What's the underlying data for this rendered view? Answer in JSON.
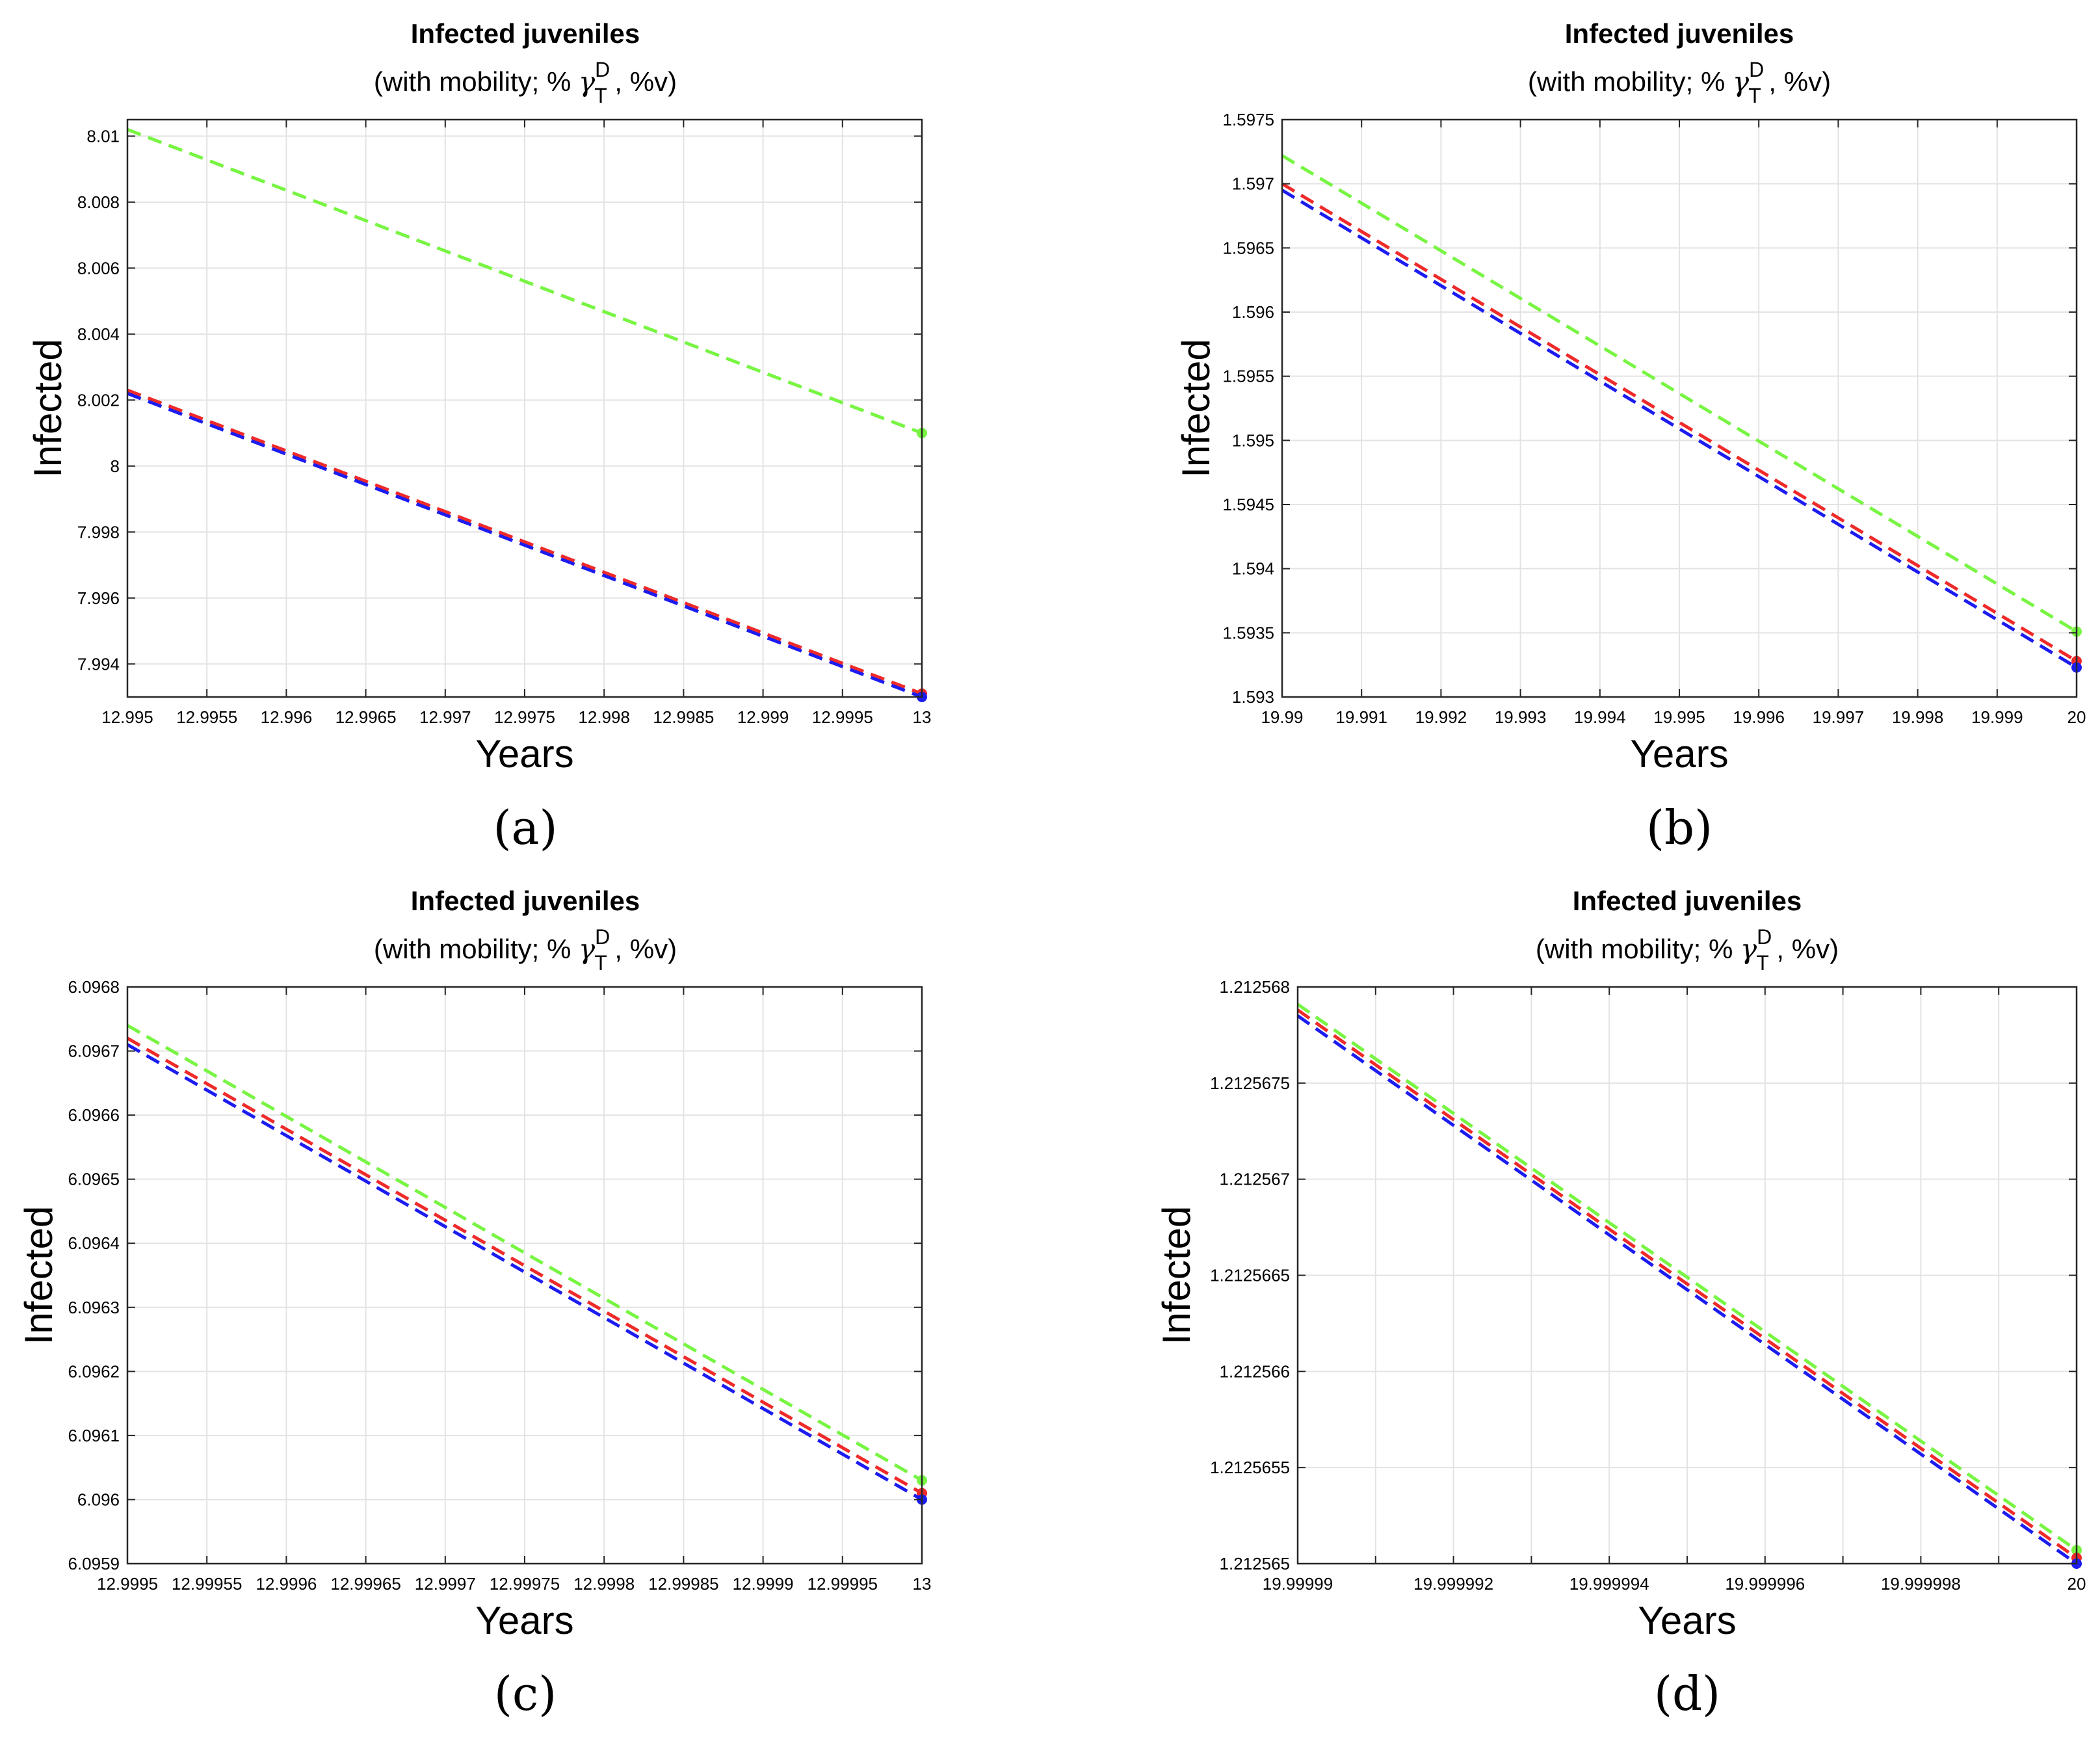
{
  "colors": {
    "green": "#77f542",
    "red": "#ef2a2a",
    "blue": "#1c1cf0",
    "grid": "#e3e3e3",
    "axis": "#262626",
    "text": "#000000"
  },
  "chart_data": [
    {
      "id": "a",
      "type": "line",
      "panel_label": "(a)",
      "title": "Infected juveniles",
      "subtitle_prefix": "(with mobility; % ",
      "subtitle_gamma": "γ",
      "subtitle_sup": "D",
      "subtitle_sub": "T",
      "subtitle_suffix": " , %v)",
      "xlabel": "Years",
      "ylabel": "Infected",
      "xlim": [
        12.995,
        13
      ],
      "ylim": [
        7.993,
        8.0105
      ],
      "xticks": [
        12.995,
        12.9955,
        12.996,
        12.9965,
        12.997,
        12.9975,
        12.998,
        12.9985,
        12.999,
        12.9995,
        13
      ],
      "xtick_labels": [
        "12.995",
        "12.9955",
        "12.996",
        "12.9965",
        "12.997",
        "12.9975",
        "12.998",
        "12.9985",
        "12.999",
        "12.9995",
        "13"
      ],
      "yticks": [
        7.994,
        7.996,
        7.998,
        8,
        8.002,
        8.004,
        8.006,
        8.008,
        8.01
      ],
      "ytick_labels": [
        "7.994",
        "7.996",
        "7.998",
        "8",
        "8.002",
        "8.004",
        "8.006",
        "8.008",
        "8.01"
      ],
      "grid": true,
      "series": [
        {
          "name": "green",
          "color": "green",
          "x": [
            12.995,
            13
          ],
          "y": [
            8.0102,
            8.001
          ]
        },
        {
          "name": "red",
          "color": "red",
          "x": [
            12.995,
            13
          ],
          "y": [
            8.0023,
            7.9931
          ]
        },
        {
          "name": "blue",
          "color": "blue",
          "x": [
            12.995,
            13
          ],
          "y": [
            8.0022,
            7.993
          ]
        }
      ]
    },
    {
      "id": "b",
      "type": "line",
      "panel_label": "(b)",
      "title": "Infected juveniles",
      "subtitle_prefix": "(with mobility; % ",
      "subtitle_gamma": "γ",
      "subtitle_sup": "D",
      "subtitle_sub": "T",
      "subtitle_suffix": " , %v)",
      "xlabel": "Years",
      "ylabel": "Infected",
      "xlim": [
        19.99,
        20
      ],
      "ylim": [
        1.593,
        1.5975
      ],
      "xticks": [
        19.99,
        19.991,
        19.992,
        19.993,
        19.994,
        19.995,
        19.996,
        19.997,
        19.998,
        19.999,
        20
      ],
      "xtick_labels": [
        "19.99",
        "19.991",
        "19.992",
        "19.993",
        "19.994",
        "19.995",
        "19.996",
        "19.997",
        "19.998",
        "19.999",
        "20"
      ],
      "yticks": [
        1.593,
        1.5935,
        1.594,
        1.5945,
        1.595,
        1.5955,
        1.596,
        1.5965,
        1.597,
        1.5975
      ],
      "ytick_labels": [
        "1.593",
        "1.5935",
        "1.594",
        "1.5945",
        "1.595",
        "1.5955",
        "1.596",
        "1.5965",
        "1.597",
        "1.5975"
      ],
      "grid": true,
      "series": [
        {
          "name": "green",
          "color": "green",
          "x": [
            19.99,
            20
          ],
          "y": [
            1.59722,
            1.59351
          ]
        },
        {
          "name": "red",
          "color": "red",
          "x": [
            19.99,
            20
          ],
          "y": [
            1.597,
            1.59328
          ]
        },
        {
          "name": "blue",
          "color": "blue",
          "x": [
            19.99,
            20
          ],
          "y": [
            1.59695,
            1.59323
          ]
        }
      ]
    },
    {
      "id": "c",
      "type": "line",
      "panel_label": "(c)",
      "title": "Infected juveniles",
      "subtitle_prefix": "(with mobility; % ",
      "subtitle_gamma": "γ",
      "subtitle_sup": "D",
      "subtitle_sub": "T",
      "subtitle_suffix": " , %v)",
      "xlabel": "Years",
      "ylabel": "Infected",
      "xlim": [
        12.9995,
        13
      ],
      "ylim": [
        6.0959,
        6.0968
      ],
      "xticks": [
        12.9995,
        12.99955,
        12.9996,
        12.99965,
        12.9997,
        12.99975,
        12.9998,
        12.99985,
        12.9999,
        12.99995,
        13
      ],
      "xtick_labels": [
        "12.9995",
        "12.99955",
        "12.9996",
        "12.99965",
        "12.9997",
        "12.99975",
        "12.9998",
        "12.99985",
        "12.9999",
        "12.99995",
        "13"
      ],
      "yticks": [
        6.0959,
        6.096,
        6.0961,
        6.0962,
        6.0963,
        6.0964,
        6.0965,
        6.0966,
        6.0967,
        6.0968
      ],
      "ytick_labels": [
        "6.0959",
        "6.096",
        "6.0961",
        "6.0962",
        "6.0963",
        "6.0964",
        "6.0965",
        "6.0966",
        "6.0967",
        "6.0968"
      ],
      "grid": true,
      "series": [
        {
          "name": "green",
          "color": "green",
          "x": [
            12.9995,
            13
          ],
          "y": [
            6.09674,
            6.09603
          ]
        },
        {
          "name": "red",
          "color": "red",
          "x": [
            12.9995,
            13
          ],
          "y": [
            6.09672,
            6.09601
          ]
        },
        {
          "name": "blue",
          "color": "blue",
          "x": [
            12.9995,
            13
          ],
          "y": [
            6.09671,
            6.096
          ]
        }
      ]
    },
    {
      "id": "d",
      "type": "line",
      "panel_label": "(d)",
      "title": "Infected juveniles",
      "subtitle_prefix": "(with mobility; % ",
      "subtitle_gamma": "γ",
      "subtitle_sup": "D",
      "subtitle_sub": "T",
      "subtitle_suffix": " , %v)",
      "xlabel": "Years",
      "ylabel": "Infected",
      "xlim": [
        19.99999,
        20
      ],
      "ylim": [
        1.212565,
        1.212568
      ],
      "xticks": [
        19.99999,
        19.999991,
        19.999992,
        19.999993,
        19.999994,
        19.999995,
        19.999996,
        19.999997,
        19.999998,
        19.999999,
        20
      ],
      "xtick_labels": [
        "19.99999",
        "",
        "19.999992",
        "",
        "19.999994",
        "",
        "19.999996",
        "",
        "19.999998",
        "",
        "20"
      ],
      "yticks": [
        1.212565,
        1.2125655,
        1.212566,
        1.2125665,
        1.212567,
        1.2125675,
        1.212568
      ],
      "ytick_labels": [
        "1.212565",
        "1.2125655",
        "1.212566",
        "1.2125665",
        "1.212567",
        "1.2125675",
        "1.212568"
      ],
      "grid": true,
      "series": [
        {
          "name": "green",
          "color": "green",
          "x": [
            19.99999,
            20
          ],
          "y": [
            1.21256791,
            1.21256507
          ]
        },
        {
          "name": "red",
          "color": "red",
          "x": [
            19.99999,
            20
          ],
          "y": [
            1.21256788,
            1.21256503
          ]
        },
        {
          "name": "blue",
          "color": "blue",
          "x": [
            19.99999,
            20
          ],
          "y": [
            1.21256785,
            1.212565
          ]
        }
      ]
    }
  ]
}
